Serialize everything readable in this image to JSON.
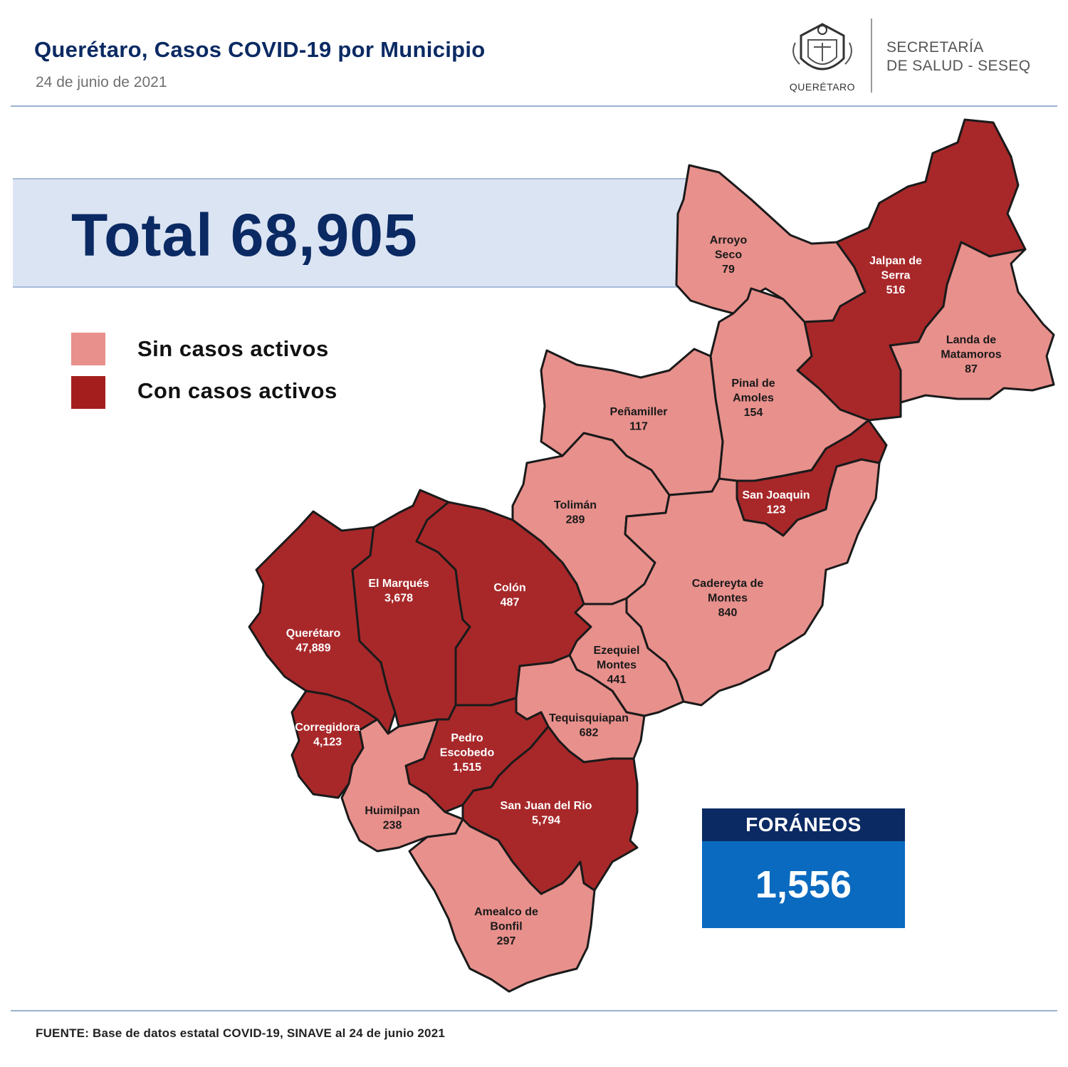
{
  "header": {
    "title": "Querétaro, Casos COVID-19 por Municipio",
    "date": "24 de junio de 2021",
    "logo_text": "QUERÉTARO",
    "org_line1": "SECRETARÍA",
    "org_line2": "DE SALUD - SESEQ"
  },
  "total": {
    "label": "Total 68,905"
  },
  "legend": [
    {
      "label": "Sin casos activos",
      "color": "#e8908c"
    },
    {
      "label": "Con casos activos",
      "color": "#a41e1e"
    }
  ],
  "colors": {
    "inactive": "#e8908c",
    "active": "#a8282a",
    "border": "#1a1a1a"
  },
  "municipios": [
    {
      "id": "arroyo-seco",
      "lines": [
        "Arroyo",
        "Seco",
        "79"
      ],
      "active": false
    },
    {
      "id": "jalpan",
      "lines": [
        "Jalpan de",
        "Serra",
        "516"
      ],
      "active": true
    },
    {
      "id": "landa",
      "lines": [
        "Landa de",
        "Matamoros",
        "87"
      ],
      "active": false
    },
    {
      "id": "pinal",
      "lines": [
        "Pinal de",
        "Amoles",
        "154"
      ],
      "active": false
    },
    {
      "id": "penamiller",
      "lines": [
        "Peñamiller",
        "117"
      ],
      "active": false
    },
    {
      "id": "san-joaquin",
      "lines": [
        "San Joaquin",
        "123"
      ],
      "active": true
    },
    {
      "id": "toliman",
      "lines": [
        "Tolimán",
        "289"
      ],
      "active": false
    },
    {
      "id": "cadereyta",
      "lines": [
        "Cadereyta de",
        "Montes",
        "840"
      ],
      "active": false
    },
    {
      "id": "el-marques",
      "lines": [
        "El  Marqués",
        "3,678"
      ],
      "active": true
    },
    {
      "id": "colon",
      "lines": [
        "Colón",
        "487"
      ],
      "active": true
    },
    {
      "id": "queretaro",
      "lines": [
        "Querétaro",
        "47,889"
      ],
      "active": true
    },
    {
      "id": "ezequiel",
      "lines": [
        "Ezequiel",
        "Montes",
        "441"
      ],
      "active": false
    },
    {
      "id": "tequisquiapan",
      "lines": [
        "Tequisquiapan",
        "682"
      ],
      "active": false
    },
    {
      "id": "corregidora",
      "lines": [
        "Corregidora",
        "4,123"
      ],
      "active": true
    },
    {
      "id": "pedro-escobedo",
      "lines": [
        "Pedro",
        "Escobedo",
        "1,515"
      ],
      "active": true
    },
    {
      "id": "huimilpan",
      "lines": [
        "Huimilpan",
        "238"
      ],
      "active": false
    },
    {
      "id": "san-juan",
      "lines": [
        "San Juan del Rio",
        "5,794"
      ],
      "active": true
    },
    {
      "id": "amealco",
      "lines": [
        "Amealco de",
        "Bonfil",
        "297"
      ],
      "active": false
    }
  ],
  "foraneos": {
    "label": "FORÁNEOS",
    "value": "1,556"
  },
  "source": "FUENTE:  Base de datos estatal COVID-19,  SINAVE  al 24 de junio 2021"
}
